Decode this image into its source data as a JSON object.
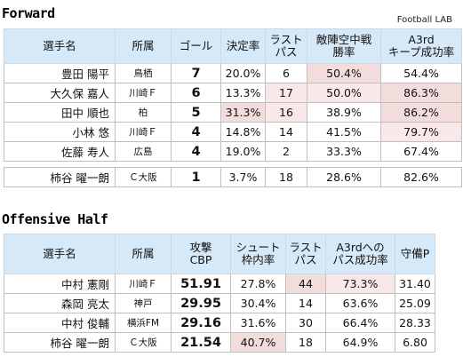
{
  "forward": {
    "title": "Forward",
    "source": "Football LAB",
    "headers": [
      "選手名",
      "所属",
      "ゴール",
      "決定率",
      "ラスト\nパス",
      "敵陣空中戦\n勝率",
      "A3rd\nキープ成功率"
    ],
    "rows": [
      {
        "name": "豊田 陽平",
        "club": "鳥栖",
        "goals": "7",
        "rate": "20.0%",
        "pass": "6",
        "air": "50.4%",
        "keep": "54.4%"
      },
      {
        "name": "大久保 嘉人",
        "club": "川崎Ｆ",
        "goals": "6",
        "rate": "13.3%",
        "pass": "17",
        "air": "50.0%",
        "keep": "86.3%"
      },
      {
        "name": "田中 順也",
        "club": "柏",
        "goals": "5",
        "rate": "31.3%",
        "pass": "16",
        "air": "38.9%",
        "keep": "86.2%"
      },
      {
        "name": "小林 悠",
        "club": "川崎Ｆ",
        "goals": "4",
        "rate": "14.8%",
        "pass": "14",
        "air": "41.5%",
        "keep": "79.7%"
      },
      {
        "name": "佐藤 寿人",
        "club": "広島",
        "goals": "4",
        "rate": "19.0%",
        "pass": "2",
        "air": "33.3%",
        "keep": "67.4%"
      }
    ],
    "extra": {
      "name": "柿谷 曜一朗",
      "club": "Ｃ大阪",
      "goals": "1",
      "rate": "3.7%",
      "pass": "18",
      "air": "28.6%",
      "keep": "82.6%"
    }
  },
  "offensive": {
    "title": "Offensive Half",
    "headers": [
      "選手名",
      "所属",
      "攻撃\nCBP",
      "シュート\n枠内率",
      "ラスト\nパス",
      "A3rdへの\nパス成功率",
      "守備P"
    ],
    "rows": [
      {
        "name": "中村 憲剛",
        "club": "川崎Ｆ",
        "cbp": "51.91",
        "shot": "27.8%",
        "pass": "44",
        "a3": "73.3%",
        "def": "31.40"
      },
      {
        "name": "森岡 亮太",
        "club": "神戸",
        "cbp": "29.95",
        "shot": "30.4%",
        "pass": "14",
        "a3": "63.6%",
        "def": "25.09"
      },
      {
        "name": "中村 俊輔",
        "club": "横浜FM",
        "cbp": "29.16",
        "shot": "31.6%",
        "pass": "30",
        "a3": "66.4%",
        "def": "28.33"
      },
      {
        "name": "柿谷 曜一朗",
        "club": "Ｃ大阪",
        "cbp": "21.54",
        "shot": "40.7%",
        "pass": "18",
        "a3": "64.9%",
        "def": "6.80"
      }
    ]
  },
  "colors": {
    "header_bg": "#d6e9f8",
    "highlight": "#f2dcdc"
  }
}
